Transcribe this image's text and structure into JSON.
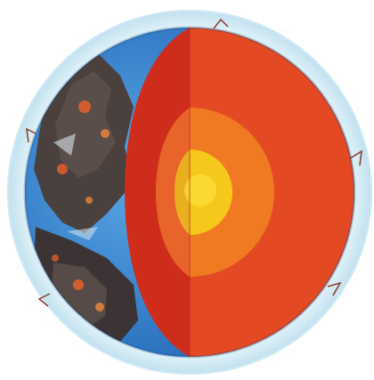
{
  "image": {
    "subject": "earth-cutaway-illustration",
    "colors": {
      "background": "#ffffff",
      "atmosphere_outer": "#cfe9f4",
      "atmosphere_inner": "#e8f6fb",
      "ocean": "#2f7fd0",
      "ocean_light": "#5aa8e6",
      "rock_dark": "#3c3434",
      "rock_mid": "#5a4e4a",
      "lava_glow": "#e8602a",
      "mantle_dark": "#cf2d1c",
      "mantle": "#e34a24",
      "outer_core": "#f07a22",
      "inner_core": "#f7c81c",
      "inner_core_center": "#fbe13a"
    }
  }
}
